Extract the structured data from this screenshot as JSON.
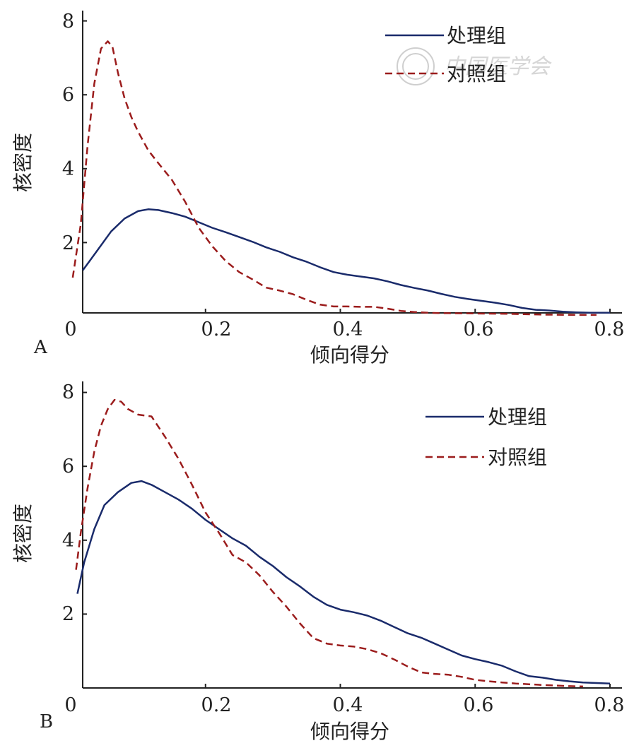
{
  "chart_data": [
    {
      "type": "line",
      "panel_label": "A",
      "xlabel": "倾向得分",
      "ylabel": "核密度",
      "x_ticks": [
        "0",
        "0.2",
        "0.4",
        "0.6",
        "0.8"
      ],
      "y_ticks": [
        "2",
        "4",
        "6",
        "8"
      ],
      "xlim": [
        0,
        0.82
      ],
      "ylim": [
        0,
        8.2
      ],
      "legend_position": "top-right",
      "watermark": "中国医学会",
      "series": [
        {
          "name": "处理组",
          "color": "#1a2b6b",
          "style": "solid",
          "points": [
            [
              0.018,
              1.25
            ],
            [
              0.04,
              1.8
            ],
            [
              0.06,
              2.3
            ],
            [
              0.08,
              2.65
            ],
            [
              0.1,
              2.85
            ],
            [
              0.115,
              2.9
            ],
            [
              0.13,
              2.88
            ],
            [
              0.15,
              2.8
            ],
            [
              0.17,
              2.7
            ],
            [
              0.19,
              2.55
            ],
            [
              0.21,
              2.4
            ],
            [
              0.23,
              2.28
            ],
            [
              0.25,
              2.15
            ],
            [
              0.27,
              2.02
            ],
            [
              0.29,
              1.87
            ],
            [
              0.31,
              1.75
            ],
            [
              0.33,
              1.6
            ],
            [
              0.35,
              1.48
            ],
            [
              0.37,
              1.33
            ],
            [
              0.39,
              1.2
            ],
            [
              0.41,
              1.13
            ],
            [
              0.43,
              1.08
            ],
            [
              0.45,
              1.03
            ],
            [
              0.47,
              0.95
            ],
            [
              0.49,
              0.85
            ],
            [
              0.51,
              0.77
            ],
            [
              0.53,
              0.7
            ],
            [
              0.55,
              0.61
            ],
            [
              0.57,
              0.53
            ],
            [
              0.59,
              0.47
            ],
            [
              0.61,
              0.42
            ],
            [
              0.63,
              0.37
            ],
            [
              0.65,
              0.31
            ],
            [
              0.67,
              0.23
            ],
            [
              0.69,
              0.18
            ],
            [
              0.71,
              0.16
            ],
            [
              0.73,
              0.13
            ],
            [
              0.75,
              0.11
            ],
            [
              0.77,
              0.1
            ],
            [
              0.8,
              0.1
            ]
          ]
        },
        {
          "name": "对照组",
          "color": "#9b1c1c",
          "style": "dashed",
          "points": [
            [
              0.003,
              1.05
            ],
            [
              0.015,
              2.5
            ],
            [
              0.025,
              4.6
            ],
            [
              0.035,
              6.3
            ],
            [
              0.045,
              7.25
            ],
            [
              0.055,
              7.45
            ],
            [
              0.062,
              7.3
            ],
            [
              0.07,
              6.6
            ],
            [
              0.08,
              5.9
            ],
            [
              0.09,
              5.4
            ],
            [
              0.1,
              5.0
            ],
            [
              0.115,
              4.5
            ],
            [
              0.13,
              4.15
            ],
            [
              0.15,
              3.7
            ],
            [
              0.17,
              3.1
            ],
            [
              0.19,
              2.4
            ],
            [
              0.21,
              1.9
            ],
            [
              0.23,
              1.5
            ],
            [
              0.25,
              1.2
            ],
            [
              0.27,
              1.0
            ],
            [
              0.29,
              0.78
            ],
            [
              0.31,
              0.7
            ],
            [
              0.33,
              0.6
            ],
            [
              0.35,
              0.45
            ],
            [
              0.37,
              0.32
            ],
            [
              0.39,
              0.27
            ],
            [
              0.41,
              0.27
            ],
            [
              0.43,
              0.26
            ],
            [
              0.45,
              0.26
            ],
            [
              0.47,
              0.21
            ],
            [
              0.49,
              0.15
            ],
            [
              0.51,
              0.12
            ],
            [
              0.53,
              0.1
            ],
            [
              0.55,
              0.09
            ],
            [
              0.6,
              0.08
            ],
            [
              0.65,
              0.07
            ],
            [
              0.7,
              0.05
            ],
            [
              0.75,
              0.04
            ],
            [
              0.78,
              0.04
            ]
          ]
        }
      ]
    },
    {
      "type": "line",
      "panel_label": "B",
      "xlabel": "倾向得分",
      "ylabel": "核密度",
      "x_ticks": [
        "0",
        "0.2",
        "0.4",
        "0.6",
        "0.8"
      ],
      "y_ticks": [
        "2",
        "4",
        "6",
        "8"
      ],
      "xlim": [
        0,
        0.82
      ],
      "ylim": [
        0,
        8.2
      ],
      "legend_position": "top-right",
      "series": [
        {
          "name": "处理组",
          "color": "#1a2b6b",
          "style": "solid",
          "points": [
            [
              0.01,
              2.55
            ],
            [
              0.02,
              3.4
            ],
            [
              0.035,
              4.3
            ],
            [
              0.05,
              4.95
            ],
            [
              0.07,
              5.3
            ],
            [
              0.09,
              5.55
            ],
            [
              0.105,
              5.6
            ],
            [
              0.12,
              5.5
            ],
            [
              0.14,
              5.3
            ],
            [
              0.16,
              5.1
            ],
            [
              0.18,
              4.85
            ],
            [
              0.2,
              4.55
            ],
            [
              0.22,
              4.3
            ],
            [
              0.24,
              4.05
            ],
            [
              0.26,
              3.85
            ],
            [
              0.28,
              3.55
            ],
            [
              0.3,
              3.3
            ],
            [
              0.32,
              3.0
            ],
            [
              0.34,
              2.75
            ],
            [
              0.36,
              2.47
            ],
            [
              0.38,
              2.25
            ],
            [
              0.4,
              2.12
            ],
            [
              0.42,
              2.05
            ],
            [
              0.44,
              1.96
            ],
            [
              0.46,
              1.82
            ],
            [
              0.48,
              1.65
            ],
            [
              0.5,
              1.48
            ],
            [
              0.52,
              1.36
            ],
            [
              0.54,
              1.2
            ],
            [
              0.56,
              1.04
            ],
            [
              0.58,
              0.88
            ],
            [
              0.6,
              0.78
            ],
            [
              0.62,
              0.7
            ],
            [
              0.64,
              0.6
            ],
            [
              0.66,
              0.45
            ],
            [
              0.68,
              0.32
            ],
            [
              0.7,
              0.28
            ],
            [
              0.72,
              0.22
            ],
            [
              0.74,
              0.18
            ],
            [
              0.76,
              0.15
            ],
            [
              0.8,
              0.12
            ]
          ]
        },
        {
          "name": "对照组",
          "color": "#9b1c1c",
          "style": "dashed",
          "points": [
            [
              0.008,
              3.2
            ],
            [
              0.015,
              4.2
            ],
            [
              0.025,
              5.4
            ],
            [
              0.035,
              6.4
            ],
            [
              0.045,
              7.1
            ],
            [
              0.055,
              7.55
            ],
            [
              0.065,
              7.8
            ],
            [
              0.075,
              7.75
            ],
            [
              0.085,
              7.55
            ],
            [
              0.1,
              7.4
            ],
            [
              0.12,
              7.35
            ],
            [
              0.14,
              6.8
            ],
            [
              0.16,
              6.2
            ],
            [
              0.18,
              5.5
            ],
            [
              0.2,
              4.75
            ],
            [
              0.22,
              4.2
            ],
            [
              0.24,
              3.6
            ],
            [
              0.26,
              3.4
            ],
            [
              0.28,
              3.05
            ],
            [
              0.3,
              2.6
            ],
            [
              0.32,
              2.2
            ],
            [
              0.34,
              1.75
            ],
            [
              0.36,
              1.35
            ],
            [
              0.38,
              1.2
            ],
            [
              0.4,
              1.15
            ],
            [
              0.42,
              1.12
            ],
            [
              0.44,
              1.05
            ],
            [
              0.46,
              0.94
            ],
            [
              0.48,
              0.77
            ],
            [
              0.5,
              0.58
            ],
            [
              0.52,
              0.42
            ],
            [
              0.54,
              0.38
            ],
            [
              0.56,
              0.36
            ],
            [
              0.58,
              0.3
            ],
            [
              0.6,
              0.22
            ],
            [
              0.62,
              0.18
            ],
            [
              0.64,
              0.15
            ],
            [
              0.66,
              0.12
            ],
            [
              0.7,
              0.08
            ],
            [
              0.74,
              0.05
            ],
            [
              0.76,
              0.04
            ]
          ]
        }
      ]
    }
  ]
}
